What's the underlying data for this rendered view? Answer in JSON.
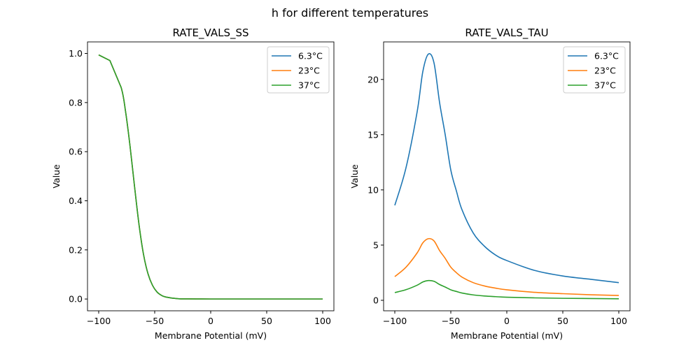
{
  "figure_title": "h for different temperatures",
  "colors": {
    "6.3°C": "#1f77b4",
    "23°C": "#ff7f0e",
    "37°C": "#2ca02c"
  },
  "chart_data": [
    {
      "type": "line",
      "title": "RATE_VALS_SS",
      "xlabel": "Membrane Potential (mV)",
      "ylabel": "Value",
      "xlim": [
        -110,
        110
      ],
      "ylim": [
        -0.048,
        1.047
      ],
      "xticks": [
        -100,
        -50,
        0,
        50,
        100
      ],
      "xtick_labels": [
        "−100",
        "−50",
        "0",
        "50",
        "100"
      ],
      "yticks": [
        0,
        0.2,
        0.4,
        0.6,
        0.8,
        1.0
      ],
      "ytick_labels": [
        "0.0",
        "0.2",
        "0.4",
        "0.6",
        "0.8",
        "1.0"
      ],
      "legend": "top-right",
      "grid": false,
      "x": [
        -100,
        -90,
        -80,
        -76,
        -72,
        -68,
        -64,
        -60,
        -56,
        -52,
        -48,
        -44,
        -40,
        -30,
        -20,
        -10,
        0,
        50,
        100
      ],
      "series": [
        {
          "name": "6.3°C",
          "values": [
            0.994,
            0.971,
            0.862,
            0.763,
            0.622,
            0.458,
            0.303,
            0.182,
            0.103,
            0.056,
            0.029,
            0.015,
            0.008,
            0.0015,
            0.0004,
            0.0001,
            0,
            0,
            0
          ]
        },
        {
          "name": "23°C",
          "values": [
            0.994,
            0.971,
            0.862,
            0.763,
            0.622,
            0.458,
            0.303,
            0.182,
            0.103,
            0.056,
            0.029,
            0.015,
            0.008,
            0.0015,
            0.0004,
            0.0001,
            0,
            0,
            0
          ]
        },
        {
          "name": "37°C",
          "values": [
            0.994,
            0.971,
            0.862,
            0.763,
            0.622,
            0.458,
            0.303,
            0.182,
            0.103,
            0.056,
            0.029,
            0.015,
            0.008,
            0.0015,
            0.0004,
            0.0001,
            0,
            0,
            0
          ]
        }
      ]
    },
    {
      "type": "line",
      "title": "RATE_VALS_TAU",
      "xlabel": "Membrane Potential (mV)",
      "ylabel": "Value",
      "xlim": [
        -110,
        110
      ],
      "ylim": [
        -0.95,
        23.4
      ],
      "xticks": [
        -100,
        -50,
        0,
        50,
        100
      ],
      "xtick_labels": [
        "−100",
        "−50",
        "0",
        "50",
        "100"
      ],
      "yticks": [
        0,
        5,
        10,
        15,
        20
      ],
      "ytick_labels": [
        "0",
        "5",
        "10",
        "15",
        "20"
      ],
      "legend": "top-right",
      "grid": false,
      "x": [
        -100,
        -90,
        -80,
        -75,
        -70,
        -65,
        -60,
        -55,
        -50,
        -45,
        -40,
        -30,
        -20,
        -10,
        0,
        25,
        50,
        75,
        100
      ],
      "series": [
        {
          "name": "6.3°C",
          "values": [
            8.6,
            12.0,
            17.1,
            20.7,
            22.3,
            21.5,
            17.9,
            15.0,
            11.8,
            9.9,
            8.2,
            6.1,
            4.9,
            4.1,
            3.6,
            2.7,
            2.2,
            1.9,
            1.6
          ]
        },
        {
          "name": "23°C",
          "values": [
            2.15,
            3.0,
            4.3,
            5.2,
            5.58,
            5.38,
            4.5,
            3.8,
            3.0,
            2.5,
            2.1,
            1.6,
            1.3,
            1.1,
            0.95,
            0.72,
            0.6,
            0.5,
            0.44
          ]
        },
        {
          "name": "37°C",
          "values": [
            0.7,
            0.96,
            1.37,
            1.66,
            1.79,
            1.72,
            1.43,
            1.2,
            0.95,
            0.8,
            0.66,
            0.49,
            0.39,
            0.33,
            0.28,
            0.22,
            0.18,
            0.16,
            0.14
          ]
        }
      ]
    }
  ]
}
